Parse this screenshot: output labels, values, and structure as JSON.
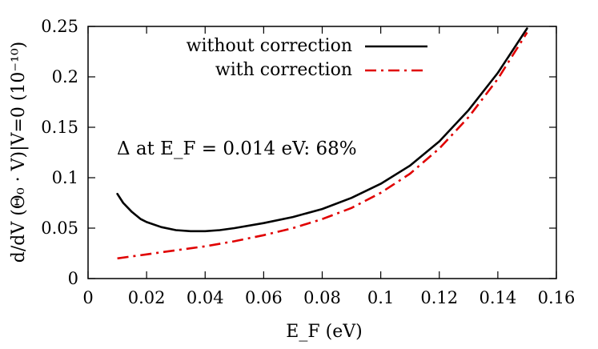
{
  "chart_data": {
    "type": "line",
    "title": "",
    "xlabel": "E_F (eV)",
    "ylabel": "d/dV (Θ₀ · V)|V=0 (10⁻¹⁰)",
    "xlim": [
      0,
      0.16
    ],
    "ylim": [
      0,
      0.25
    ],
    "x_ticks": [
      "0",
      "0.02",
      "0.04",
      "0.06",
      "0.08",
      "0.1",
      "0.12",
      "0.14",
      "0.16"
    ],
    "y_ticks": [
      "0",
      "0.05",
      "0.1",
      "0.15",
      "0.2",
      "0.25"
    ],
    "grid": false,
    "legend_position": "top-right",
    "annotation": "Δ at E_F = 0.014 eV: 68%",
    "series": [
      {
        "name": "without correction",
        "color": "#000000",
        "dash": "solid",
        "x": [
          0.01,
          0.012,
          0.015,
          0.018,
          0.02,
          0.025,
          0.03,
          0.035,
          0.04,
          0.045,
          0.05,
          0.06,
          0.07,
          0.08,
          0.09,
          0.1,
          0.11,
          0.12,
          0.13,
          0.14,
          0.15
        ],
        "y": [
          0.084,
          0.075,
          0.066,
          0.059,
          0.056,
          0.051,
          0.048,
          0.047,
          0.047,
          0.048,
          0.05,
          0.055,
          0.061,
          0.069,
          0.08,
          0.094,
          0.112,
          0.136,
          0.167,
          0.204,
          0.248
        ]
      },
      {
        "name": "with correction",
        "color": "#e00000",
        "dash": "dash-dot",
        "x": [
          0.01,
          0.015,
          0.02,
          0.025,
          0.03,
          0.035,
          0.04,
          0.05,
          0.06,
          0.07,
          0.08,
          0.09,
          0.1,
          0.11,
          0.12,
          0.13,
          0.14,
          0.15
        ],
        "y": [
          0.02,
          0.022,
          0.024,
          0.026,
          0.028,
          0.03,
          0.032,
          0.037,
          0.043,
          0.05,
          0.059,
          0.07,
          0.085,
          0.104,
          0.129,
          0.16,
          0.198,
          0.244
        ]
      }
    ]
  }
}
